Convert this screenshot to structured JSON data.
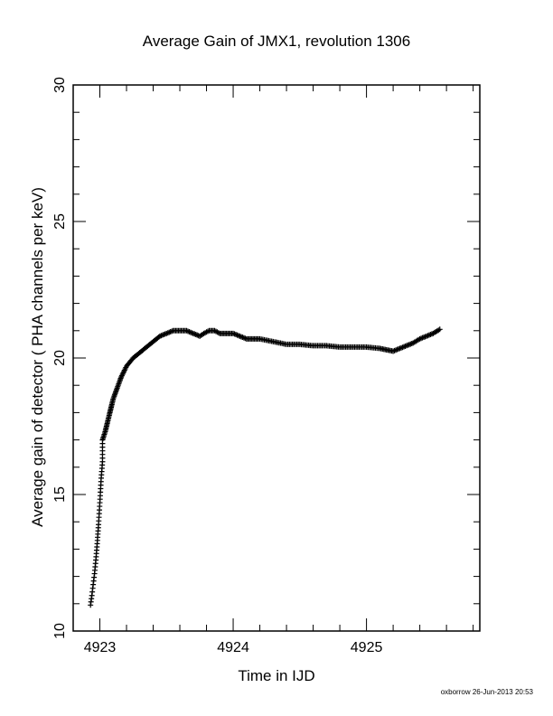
{
  "header": {
    "title": "Average Gain of JMX1, revolution 1306"
  },
  "footer": {
    "stamp": "oxborrow 26-Jun-2013 20:53"
  },
  "chart_data": {
    "type": "scatter",
    "title": "Average Gain of JMX1, revolution 1306",
    "xlabel": "Time in IJD",
    "ylabel": "Average gain of detector ( PHA channels per keV)",
    "xlim": [
      4922.8,
      4925.85
    ],
    "ylim": [
      10,
      30
    ],
    "x_ticks": [
      "4923",
      "4924",
      "4925"
    ],
    "y_ticks": [
      "10",
      "15",
      "20",
      "25",
      "30"
    ],
    "marker": "plus",
    "grid": false,
    "series": [
      {
        "points": [
          [
            4922.93,
            10.95
          ],
          [
            4922.94,
            11.3
          ],
          [
            4922.95,
            11.7
          ],
          [
            4922.96,
            12.1
          ],
          [
            4922.97,
            12.6
          ],
          [
            4922.98,
            13.2
          ],
          [
            4922.99,
            13.9
          ],
          [
            4923.0,
            14.7
          ],
          [
            4923.01,
            15.6
          ],
          [
            4923.02,
            16.2
          ],
          [
            4923.02,
            17.0
          ],
          [
            4923.04,
            17.3
          ],
          [
            4923.06,
            17.7
          ],
          [
            4923.08,
            18.1
          ],
          [
            4923.1,
            18.5
          ],
          [
            4923.13,
            18.9
          ],
          [
            4923.16,
            19.3
          ],
          [
            4923.2,
            19.7
          ],
          [
            4923.25,
            20.0
          ],
          [
            4923.3,
            20.2
          ],
          [
            4923.35,
            20.4
          ],
          [
            4923.4,
            20.6
          ],
          [
            4923.45,
            20.8
          ],
          [
            4923.5,
            20.9
          ],
          [
            4923.55,
            21.0
          ],
          [
            4923.6,
            21.0
          ],
          [
            4923.65,
            21.0
          ],
          [
            4923.7,
            20.9
          ],
          [
            4923.75,
            20.8
          ],
          [
            4923.78,
            20.9
          ],
          [
            4923.82,
            21.0
          ],
          [
            4923.86,
            21.0
          ],
          [
            4923.9,
            20.9
          ],
          [
            4923.95,
            20.9
          ],
          [
            4924.0,
            20.9
          ],
          [
            4924.05,
            20.8
          ],
          [
            4924.1,
            20.7
          ],
          [
            4924.15,
            20.7
          ],
          [
            4924.2,
            20.7
          ],
          [
            4924.3,
            20.6
          ],
          [
            4924.4,
            20.5
          ],
          [
            4924.5,
            20.5
          ],
          [
            4924.6,
            20.45
          ],
          [
            4924.7,
            20.45
          ],
          [
            4924.8,
            20.4
          ],
          [
            4924.9,
            20.4
          ],
          [
            4925.0,
            20.4
          ],
          [
            4925.1,
            20.35
          ],
          [
            4925.15,
            20.3
          ],
          [
            4925.2,
            20.25
          ],
          [
            4925.25,
            20.35
          ],
          [
            4925.3,
            20.45
          ],
          [
            4925.35,
            20.55
          ],
          [
            4925.4,
            20.7
          ],
          [
            4925.45,
            20.8
          ],
          [
            4925.5,
            20.9
          ],
          [
            4925.55,
            21.05
          ]
        ]
      }
    ]
  }
}
